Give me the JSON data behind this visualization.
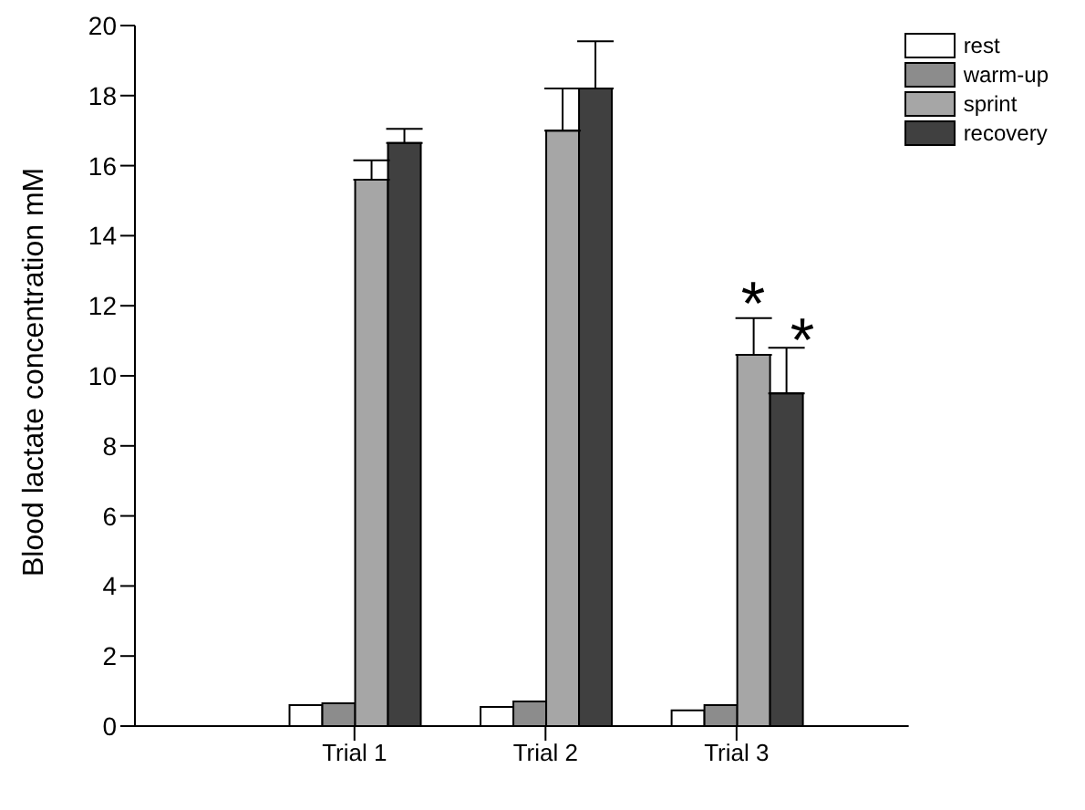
{
  "chart_data": {
    "type": "bar",
    "ylabel": "Blood lactate concentration mM",
    "categories": [
      "Trial 1",
      "Trial 2",
      "Trial 3"
    ],
    "series": [
      {
        "name": "rest",
        "color": "#ffffff",
        "values": [
          0.6,
          0.55,
          0.45
        ]
      },
      {
        "name": "warm-up",
        "color": "#8c8c8c",
        "values": [
          0.65,
          0.7,
          0.6
        ]
      },
      {
        "name": "sprint",
        "color": "#a6a6a6",
        "values": [
          15.6,
          17.0,
          10.6
        ],
        "errors": [
          [
            15.6,
            16.15
          ],
          [
            17.0,
            18.2
          ],
          [
            10.6,
            11.65
          ]
        ]
      },
      {
        "name": "recovery",
        "color": "#404040",
        "values": [
          16.65,
          18.2,
          9.5
        ],
        "errors": [
          [
            16.65,
            17.05
          ],
          [
            18.2,
            19.55
          ],
          [
            9.5,
            10.8
          ]
        ]
      }
    ],
    "ylim": [
      0,
      20
    ],
    "yticks": [
      0,
      2,
      4,
      6,
      8,
      10,
      12,
      14,
      16,
      18,
      20
    ],
    "annotations": [
      "*",
      "*"
    ],
    "grid": false,
    "legend": "top right"
  }
}
